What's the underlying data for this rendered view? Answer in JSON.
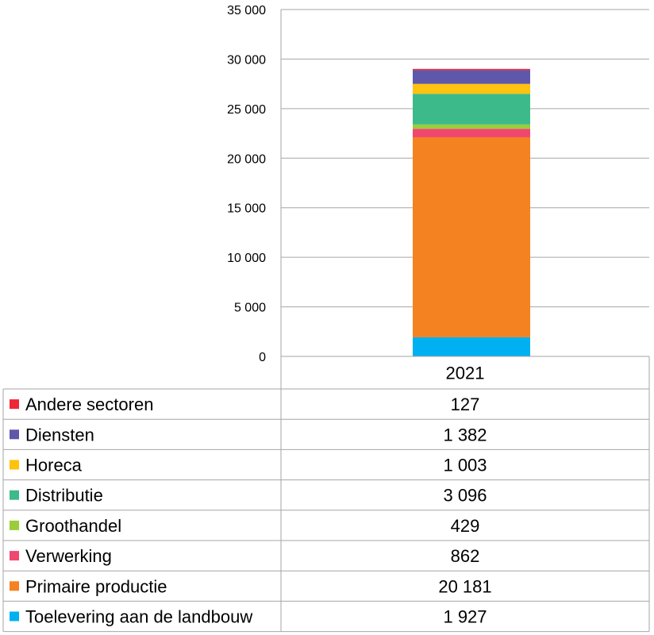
{
  "chart_data": {
    "type": "bar",
    "stacked": true,
    "categories": [
      "2021"
    ],
    "ylim": [
      0,
      35000
    ],
    "yticks": [
      "0",
      "5 000",
      "10 000",
      "15 000",
      "20 000",
      "25 000",
      "30 000",
      "35 000"
    ],
    "grid": true,
    "legend_placement": "data-table-left",
    "series": [
      {
        "name": "Toelevering aan de landbouw",
        "value": 1927,
        "label": "1 927",
        "color": "#00B0F0"
      },
      {
        "name": "Primaire productie",
        "value": 20181,
        "label": "20 181",
        "color": "#F58220"
      },
      {
        "name": "Verwerking",
        "value": 862,
        "label": "862",
        "color": "#F0476F"
      },
      {
        "name": "Groothandel",
        "value": 429,
        "label": "429",
        "color": "#9ACD3A"
      },
      {
        "name": "Distributie",
        "value": 3096,
        "label": "3 096",
        "color": "#3DBA8A"
      },
      {
        "name": "Horeca",
        "value": 1003,
        "label": "1 003",
        "color": "#FFC20E"
      },
      {
        "name": "Diensten",
        "value": 1382,
        "label": "1 382",
        "color": "#5E57AA"
      },
      {
        "name": "Andere sectoren",
        "value": 127,
        "label": "127",
        "color": "#EE2737"
      }
    ]
  }
}
